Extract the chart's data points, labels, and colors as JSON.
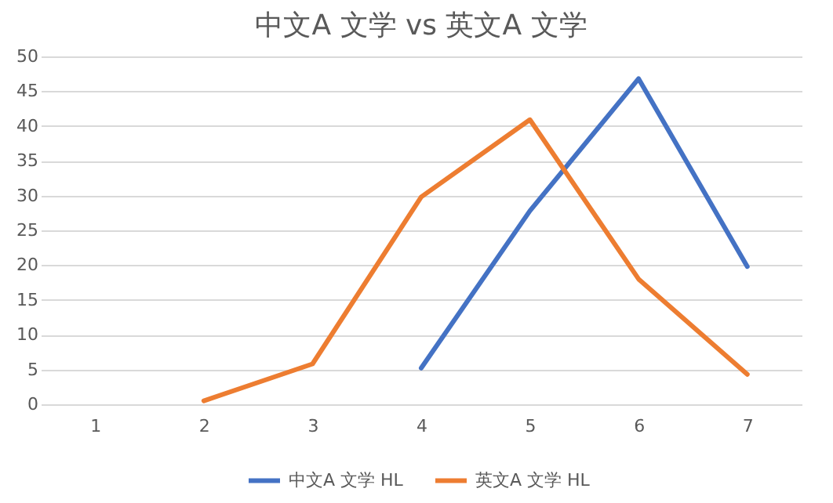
{
  "chart_data": {
    "type": "line",
    "title": "中文A 文学 vs 英文A 文学",
    "categories": [
      "1",
      "2",
      "3",
      "4",
      "5",
      "6",
      "7"
    ],
    "series": [
      {
        "name": "中文A  文学 HL",
        "color": "#4472c4",
        "values": [
          null,
          null,
          null,
          5.2,
          27.8,
          46.8,
          19.8
        ]
      },
      {
        "name": "英文A  文学 HL",
        "color": "#ed7d31",
        "values": [
          null,
          0.5,
          5.8,
          29.8,
          40.9,
          18,
          4.3
        ]
      }
    ],
    "ylim": [
      0,
      50
    ],
    "yticks": [
      0,
      5,
      10,
      15,
      20,
      25,
      30,
      35,
      40,
      45,
      50
    ],
    "grid": "y",
    "legend": "bottom",
    "marker": "none",
    "line_style": "solid"
  }
}
